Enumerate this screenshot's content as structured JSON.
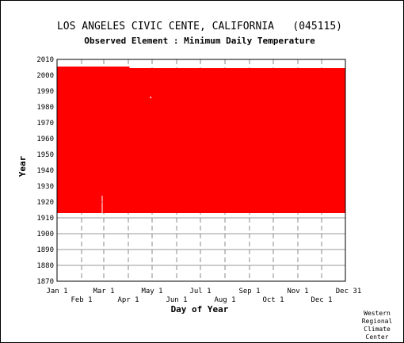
{
  "header": {
    "title": "LOS ANGELES CIVIC CENTE, CALIFORNIA   (045115)",
    "subtitle": "Observed Element : Minimum Daily Temperature"
  },
  "credit": [
    "Western",
    "Regional",
    "Climate",
    "Center"
  ],
  "chart_data": {
    "type": "area",
    "title": "LOS ANGELES CIVIC CENTE, CALIFORNIA   (045115)",
    "subtitle": "Observed Element : Minimum Daily Temperature",
    "xlabel": "Day of Year",
    "ylabel": "Year",
    "xlim": [
      1,
      365
    ],
    "ylim": [
      1870,
      2010
    ],
    "x_ticks_upper": [
      {
        "day": 1,
        "label": "Jan 1"
      },
      {
        "day": 60,
        "label": "Mar 1"
      },
      {
        "day": 121,
        "label": "May 1"
      },
      {
        "day": 182,
        "label": "Jul 1"
      },
      {
        "day": 244,
        "label": "Sep 1"
      },
      {
        "day": 305,
        "label": "Nov 1"
      },
      {
        "day": 365,
        "label": "Dec 31"
      }
    ],
    "x_ticks_lower": [
      {
        "day": 32,
        "label": "Feb 1"
      },
      {
        "day": 91,
        "label": "Apr 1"
      },
      {
        "day": 152,
        "label": "Jun 1"
      },
      {
        "day": 213,
        "label": "Aug 1"
      },
      {
        "day": 274,
        "label": "Oct 1"
      },
      {
        "day": 335,
        "label": "Dec 1"
      }
    ],
    "y_ticks": [
      1870,
      1880,
      1890,
      1900,
      1910,
      1920,
      1930,
      1940,
      1950,
      1960,
      1970,
      1980,
      1990,
      2000,
      2010
    ],
    "grid": true,
    "fill_color": "#ff0000",
    "series": [
      {
        "segments": [
          {
            "start_day": 1,
            "end_day": 57,
            "start_year": 1913,
            "end_year": 2005.5
          },
          {
            "start_day": 58,
            "end_day": 58,
            "start_year": 1924,
            "end_year": 2005.5
          },
          {
            "start_day": 59,
            "end_day": 64,
            "start_year": 1913,
            "end_year": 2005.5
          },
          {
            "start_day": 65,
            "end_day": 92,
            "start_year": 1913,
            "end_year": 2005.5
          },
          {
            "start_day": 93,
            "end_day": 365,
            "start_year": 1913,
            "end_year": 2004.5
          }
        ],
        "missing_points": [
          {
            "day": 59,
            "year": 1912
          },
          {
            "day": 119,
            "year": 1986
          }
        ]
      }
    ]
  }
}
